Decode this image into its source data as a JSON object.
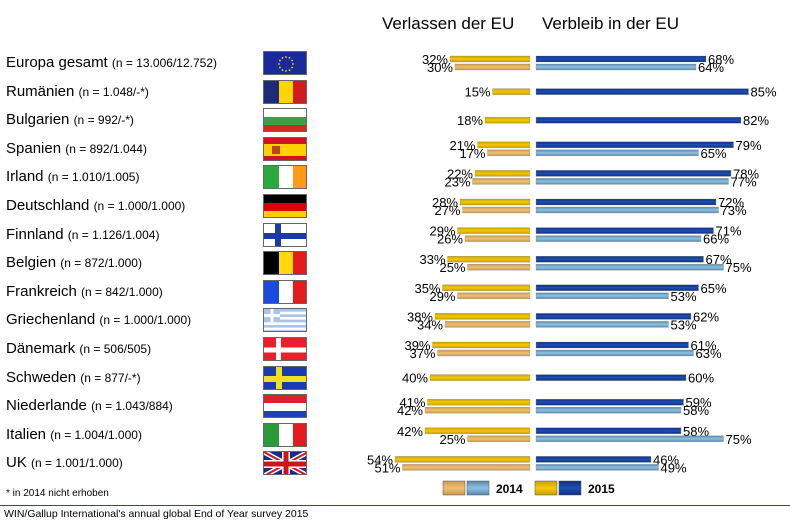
{
  "header": {
    "leave": "Verlassen der EU",
    "remain": "Verbleib in der EU"
  },
  "footnote": "* in 2014 nicht erhoben",
  "source": "WIN/Gallup International's annual global End of Year survey 2015",
  "legend": {
    "y2014": "2014",
    "y2015": "2015"
  },
  "colors": {
    "leave2015": "#f5c800",
    "leave2014": "#f0c070",
    "remain2015": "#1f4fb4",
    "remain2014": "#8cc0e0",
    "rule": "#a02030"
  },
  "rows": [
    {
      "name": "Europa gesamt",
      "n": "(n = 13.006/12.752)",
      "flag": "eu-flag-icon"
    },
    {
      "name": "Rumänien",
      "n": "(n = 1.048/-*)",
      "flag": "romania-flag-icon"
    },
    {
      "name": "Bulgarien",
      "n": "(n = 992/-*)",
      "flag": "bulgaria-flag-icon"
    },
    {
      "name": "Spanien",
      "n": "(n = 892/1.044)",
      "flag": "spain-flag-icon"
    },
    {
      "name": "Irland",
      "n": "(n = 1.010/1.005)",
      "flag": "ireland-flag-icon"
    },
    {
      "name": "Deutschland",
      "n": "(n = 1.000/1.000)",
      "flag": "germany-flag-icon"
    },
    {
      "name": "Finnland",
      "n": "(n = 1.126/1.004)",
      "flag": "finland-flag-icon"
    },
    {
      "name": "Belgien",
      "n": "(n = 872/1.000)",
      "flag": "belgium-flag-icon"
    },
    {
      "name": "Frankreich",
      "n": "(n = 842/1.000)",
      "flag": "france-flag-icon"
    },
    {
      "name": "Griechenland",
      "n": "(n = 1.000/1.000)",
      "flag": "greece-flag-icon"
    },
    {
      "name": "Dänemark",
      "n": "(n = 506/505)",
      "flag": "denmark-flag-icon"
    },
    {
      "name": "Schweden",
      "n": "(n = 877/-*)",
      "flag": "sweden-flag-icon"
    },
    {
      "name": "Niederlande",
      "n": "(n = 1.043/884)",
      "flag": "netherlands-flag-icon"
    },
    {
      "name": "Italien",
      "n": "(n = 1.004/1.000)",
      "flag": "italy-flag-icon"
    },
    {
      "name": "UK",
      "n": "(n = 1.001/1.000)",
      "flag": "uk-flag-icon"
    }
  ],
  "chart_data": {
    "type": "bar",
    "orientation": "horizontal-diverging",
    "title": "",
    "left_label": "Verlassen der EU",
    "right_label": "Verbleib in der EU",
    "unit": "%",
    "categories": [
      "Europa gesamt",
      "Rumänien",
      "Bulgarien",
      "Spanien",
      "Irland",
      "Deutschland",
      "Finnland",
      "Belgien",
      "Frankreich",
      "Griechenland",
      "Dänemark",
      "Schweden",
      "Niederlande",
      "Italien",
      "UK"
    ],
    "series": [
      {
        "name": "Verlassen 2015",
        "year": "2015",
        "side": "left",
        "values": [
          32,
          15,
          18,
          21,
          22,
          28,
          29,
          33,
          35,
          38,
          39,
          40,
          41,
          42,
          54
        ]
      },
      {
        "name": "Verlassen 2014",
        "year": "2014",
        "side": "left",
        "values": [
          30,
          null,
          null,
          17,
          23,
          27,
          26,
          25,
          29,
          34,
          37,
          null,
          42,
          25,
          51
        ]
      },
      {
        "name": "Verbleib 2015",
        "year": "2015",
        "side": "right",
        "values": [
          68,
          85,
          82,
          79,
          78,
          72,
          71,
          67,
          65,
          62,
          61,
          60,
          59,
          58,
          46
        ]
      },
      {
        "name": "Verbleib 2014",
        "year": "2014",
        "side": "right",
        "values": [
          64,
          null,
          null,
          65,
          77,
          73,
          66,
          75,
          53,
          53,
          63,
          null,
          58,
          75,
          49
        ]
      }
    ],
    "xlim": [
      0,
      100
    ],
    "legend_position": "bottom",
    "grid": false
  }
}
